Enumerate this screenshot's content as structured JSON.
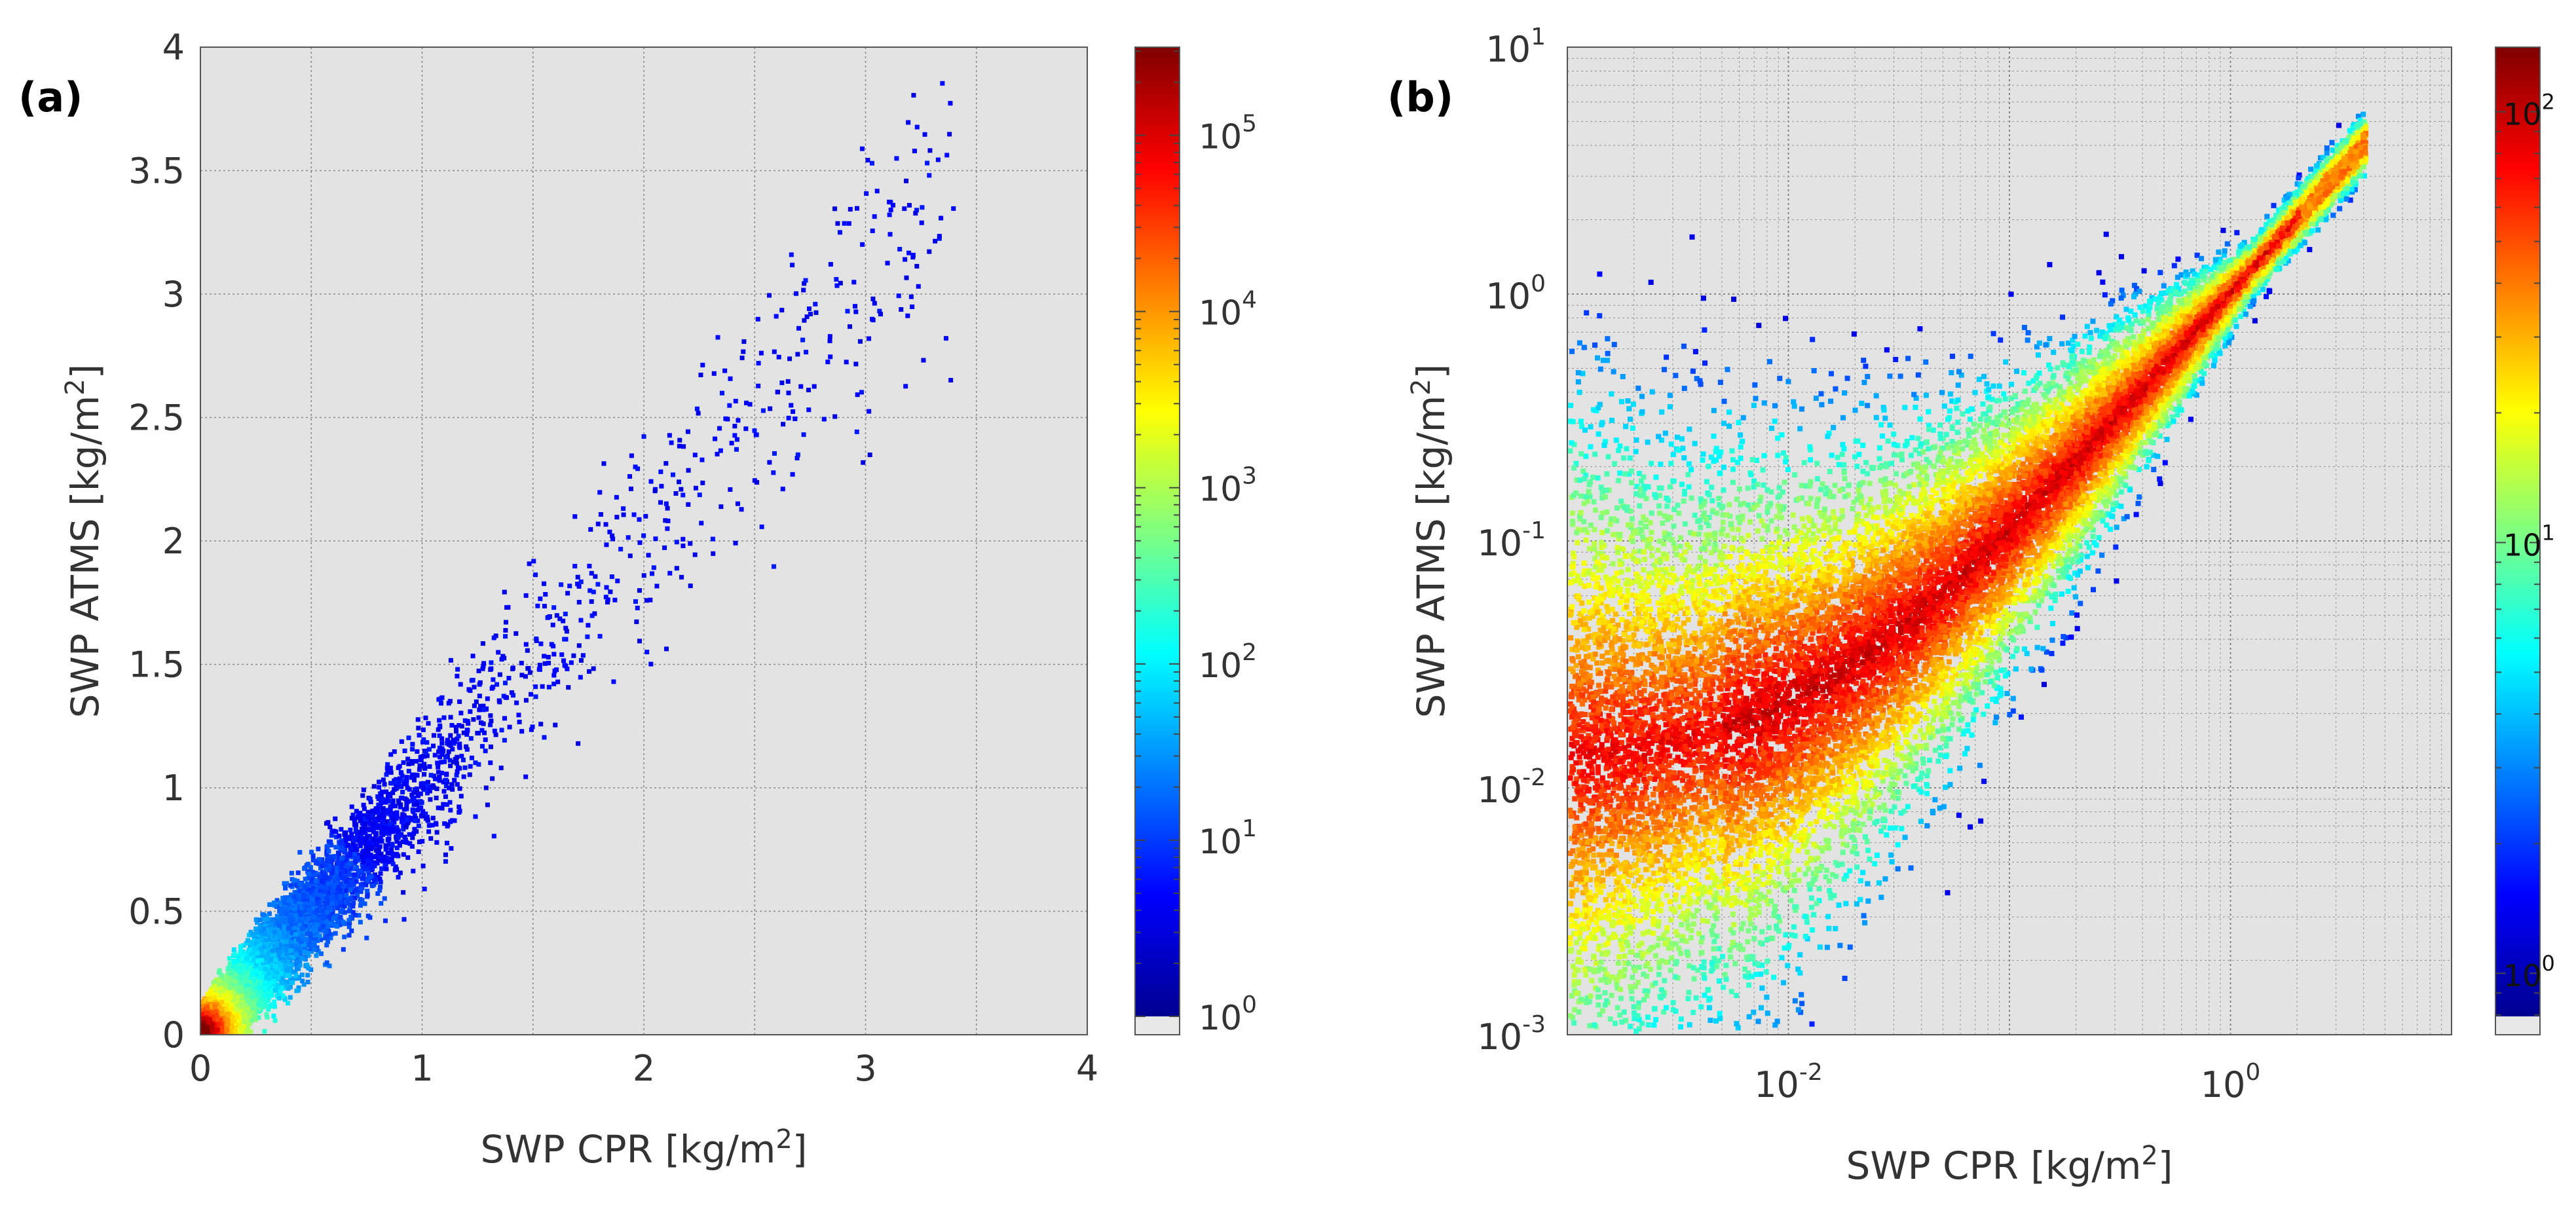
{
  "figure": {
    "panels": [
      "(a)",
      "(b)"
    ]
  },
  "chart_data": [
    {
      "type": "heatmap",
      "panel_label": "(a)",
      "scale": "linear",
      "xlabel_main": "SWP CPR [kg/m",
      "xlabel_sup": "2",
      "xlabel_end": "]",
      "ylabel_main": "SWP ATMS [kg/m",
      "ylabel_sup": "2",
      "ylabel_end": "]",
      "xlim": [
        0,
        4
      ],
      "ylim": [
        0,
        4
      ],
      "xticks": [
        0,
        1,
        2,
        3,
        4
      ],
      "xtick_labels": [
        "0",
        "1",
        "2",
        "3",
        "4"
      ],
      "yticks": [
        0,
        0.5,
        1,
        1.5,
        2,
        2.5,
        3,
        3.5,
        4
      ],
      "ytick_labels": [
        "0",
        "0.5",
        "1",
        "1.5",
        "2",
        "2.5",
        "3",
        "3.5",
        "4"
      ],
      "grid": true,
      "density_description": "joint histogram, high counts near origin, spreads along 1:1 line up to ~3.4",
      "colorbar": {
        "scale": "log",
        "min_exponent": 0,
        "max_exponent": 5.5,
        "ticks": [
          0,
          1,
          2,
          3,
          4,
          5
        ],
        "base": "10",
        "tick_exponents": [
          "0",
          "1",
          "2",
          "3",
          "4",
          "5"
        ]
      }
    },
    {
      "type": "heatmap",
      "panel_label": "(b)",
      "scale": "log",
      "xlabel_main": "SWP CPR [kg/m",
      "xlabel_sup": "2",
      "xlabel_end": "]",
      "ylabel_main": "SWP ATMS [kg/m",
      "ylabel_sup": "2",
      "ylabel_end": "]",
      "xlim_log10": [
        -3,
        1
      ],
      "ylim_log10": [
        -3,
        1
      ],
      "xticks_log10": [
        -2,
        0
      ],
      "xtick_base": "10",
      "xtick_exponents": [
        "-2",
        "0"
      ],
      "yticks_log10": [
        -3,
        -2,
        -1,
        0,
        1
      ],
      "ytick_base": "10",
      "ytick_exponents": [
        "-3",
        "-2",
        "-1",
        "0",
        "1"
      ],
      "grid": true,
      "density_description": "joint histogram on log-log axes, broad red core, converging to 1:1 line above 10^0",
      "colorbar": {
        "scale": "log",
        "min_exponent": -0.1,
        "max_exponent": 2.15,
        "ticks": [
          0,
          1,
          2
        ],
        "base": "10",
        "tick_exponents": [
          "0",
          "1",
          "2"
        ]
      }
    }
  ]
}
